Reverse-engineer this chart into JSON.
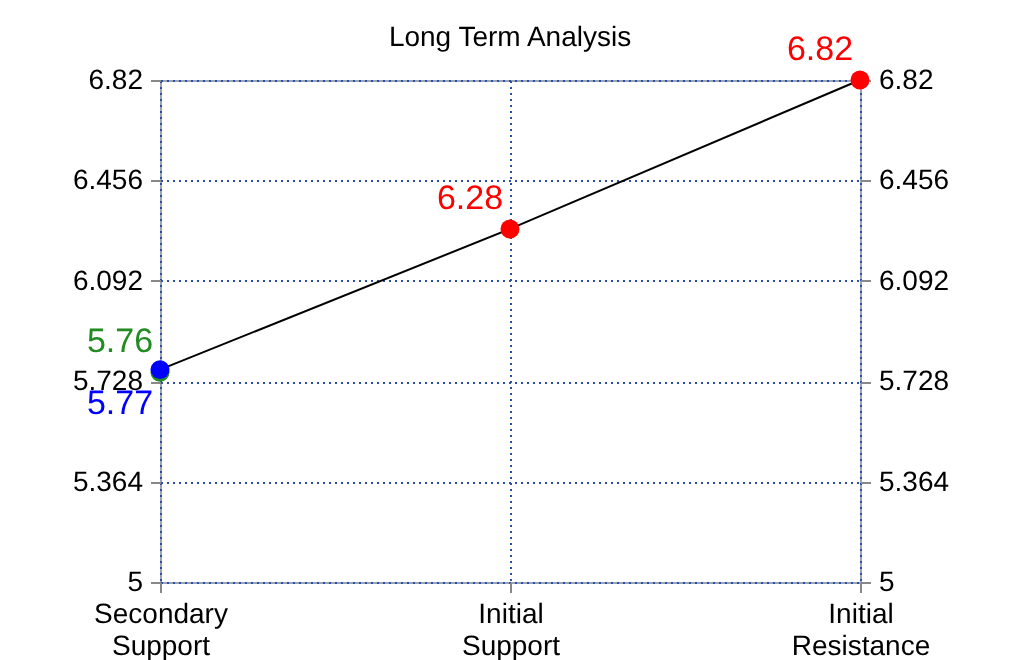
{
  "chart_data": {
    "type": "line",
    "title": "Long Term Analysis",
    "categories": [
      "Secondary Support",
      "Initial Support",
      "Initial Resistance"
    ],
    "series": [
      {
        "color": "#000000",
        "marker": "none",
        "values": [
          5.77,
          6.28,
          6.82
        ]
      },
      {
        "type": "scatter",
        "color": "#228b22",
        "marker": "circle",
        "values": [
          5.76,
          null,
          null
        ],
        "value_labels": [
          "5.76",
          null,
          null
        ]
      },
      {
        "type": "scatter",
        "color": "#0000ff",
        "marker": "circle",
        "values": [
          5.77,
          null,
          null
        ],
        "value_labels": [
          "5.77",
          null,
          null
        ]
      },
      {
        "type": "scatter",
        "color": "#ff0000",
        "marker": "circle",
        "values": [
          null,
          6.28,
          6.82
        ],
        "value_labels": [
          null,
          "6.28",
          "6.82"
        ]
      }
    ],
    "ylim": [
      5,
      6.82
    ],
    "yticks": [
      5,
      5.364,
      5.728,
      6.092,
      6.456,
      6.82
    ],
    "y2lim": [
      5,
      6.82
    ],
    "y2ticks": [
      5,
      5.364,
      5.728,
      6.092,
      6.456,
      6.82
    ],
    "grid": true
  }
}
